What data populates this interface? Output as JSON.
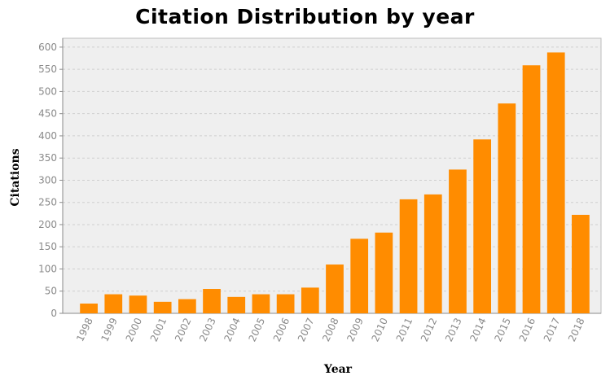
{
  "chart_data": {
    "type": "bar",
    "title": "Citation Distribution by year",
    "xlabel": "Year",
    "ylabel": "Citations",
    "categories": [
      "1998",
      "1999",
      "2000",
      "2001",
      "2002",
      "2003",
      "2004",
      "2005",
      "2006",
      "2007",
      "2008",
      "2009",
      "2010",
      "2011",
      "2012",
      "2013",
      "2014",
      "2015",
      "2016",
      "2017",
      "2018"
    ],
    "values": [
      22,
      43,
      40,
      26,
      32,
      55,
      37,
      43,
      43,
      58,
      110,
      168,
      182,
      257,
      268,
      324,
      392,
      473,
      559,
      588,
      222
    ],
    "ylim": [
      0,
      620
    ],
    "yticks": [
      0,
      50,
      100,
      150,
      200,
      250,
      300,
      350,
      400,
      450,
      500,
      550,
      600
    ],
    "grid": true,
    "bar_color": "#ff8c00",
    "plot_background": "#efefef",
    "grid_color": "#cfcfcf"
  }
}
